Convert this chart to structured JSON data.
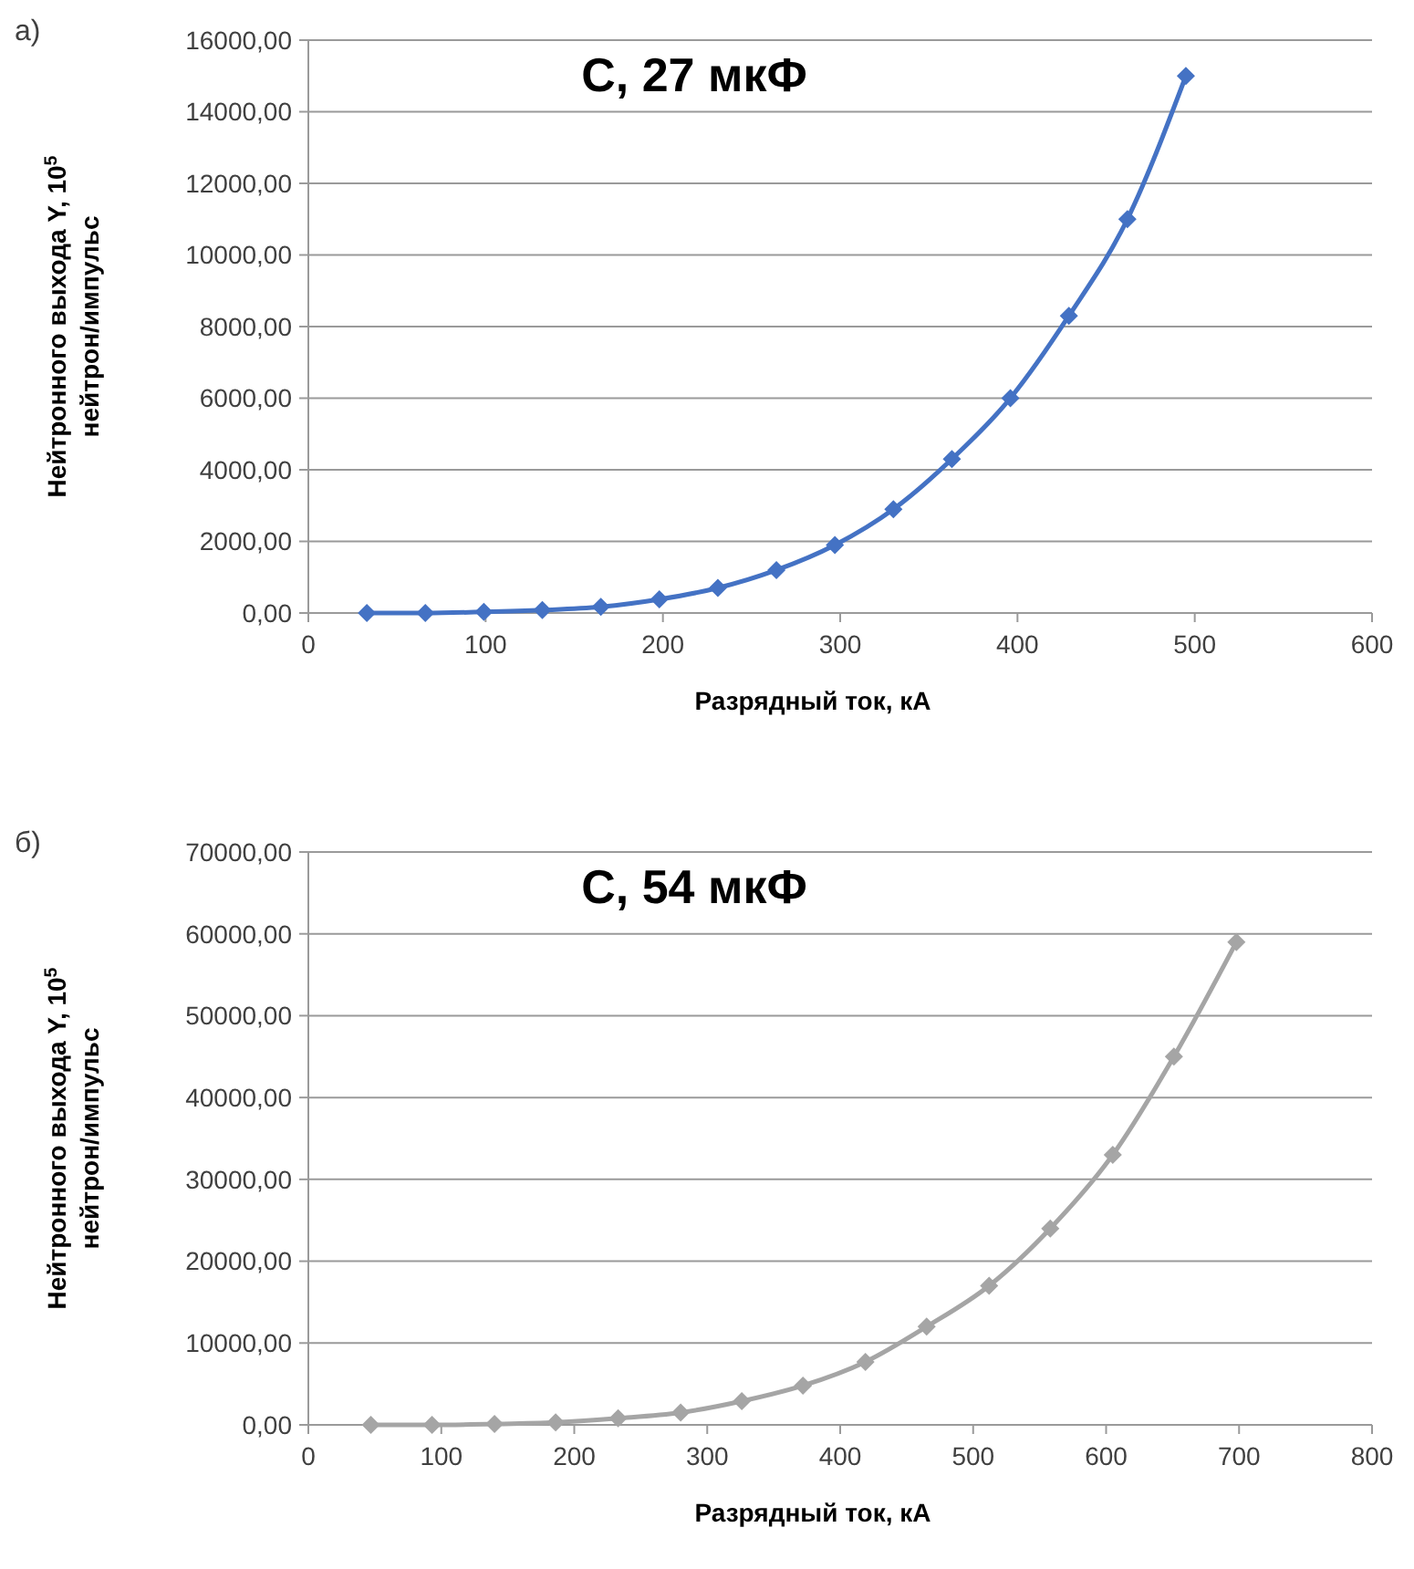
{
  "chart_data": [
    {
      "type": "line",
      "title": "C, 27 мкФ",
      "xlabel": "Разрядный ток, кА",
      "ylabel": "Нейтронного выхода Y, 10$^{5}$\nнейтрон/импульс",
      "annotations": [
        "а)"
      ],
      "x": [
        33,
        66,
        99,
        132,
        165,
        198,
        231,
        264,
        297,
        330,
        363,
        396,
        429,
        462,
        495
      ],
      "series": [
        {
          "color": "#4472c4",
          "values": [
            0,
            0,
            30,
            80,
            170,
            380,
            700,
            1200,
            1900,
            2900,
            4300,
            6000,
            8300,
            11000,
            15000
          ]
        }
      ],
      "xlim": [
        0,
        600
      ],
      "xticks": [
        0,
        100,
        200,
        300,
        400,
        500,
        600
      ],
      "ylim": [
        0,
        16000
      ],
      "yticks": [
        {
          "value": 0,
          "label": "0,00"
        },
        {
          "value": 2000,
          "label": "2000,00"
        },
        {
          "value": 4000,
          "label": "4000,00"
        },
        {
          "value": 6000,
          "label": "6000,00"
        },
        {
          "value": 8000,
          "label": "8000,00"
        },
        {
          "value": 10000,
          "label": "10000,00"
        },
        {
          "value": 12000,
          "label": "12000,00"
        },
        {
          "value": 14000,
          "label": "14000,00"
        },
        {
          "value": 16000,
          "label": "16000,00"
        }
      ],
      "grid": "y",
      "marker": "diamond",
      "line_style": "solid"
    },
    {
      "type": "line",
      "title": "C, 54 мкФ",
      "xlabel": "Разрядный ток, кА",
      "ylabel": "Нейтронного выхода Y, 10$^{5}$\nнейтрон/импульс",
      "annotations": [
        "б)"
      ],
      "x": [
        47,
        93,
        140,
        186,
        233,
        280,
        326,
        372,
        419,
        465,
        512,
        558,
        605,
        651,
        698
      ],
      "series": [
        {
          "color": "#a5a5a5",
          "values": [
            0,
            0,
            100,
            300,
            800,
            1500,
            2900,
            4800,
            7700,
            12000,
            17000,
            24000,
            33000,
            45000,
            59000
          ]
        }
      ],
      "xlim": [
        0,
        800
      ],
      "xticks": [
        0,
        100,
        200,
        300,
        400,
        500,
        600,
        700,
        800
      ],
      "ylim": [
        0,
        70000
      ],
      "yticks": [
        {
          "value": 0,
          "label": "0,00"
        },
        {
          "value": 10000,
          "label": "10000,00"
        },
        {
          "value": 20000,
          "label": "20000,00"
        },
        {
          "value": 30000,
          "label": "30000,00"
        },
        {
          "value": 40000,
          "label": "40000,00"
        },
        {
          "value": 50000,
          "label": "50000,00"
        },
        {
          "value": 60000,
          "label": "60000,00"
        },
        {
          "value": 70000,
          "label": "70000,00"
        }
      ],
      "grid": "y",
      "marker": "diamond",
      "line_style": "solid"
    }
  ]
}
